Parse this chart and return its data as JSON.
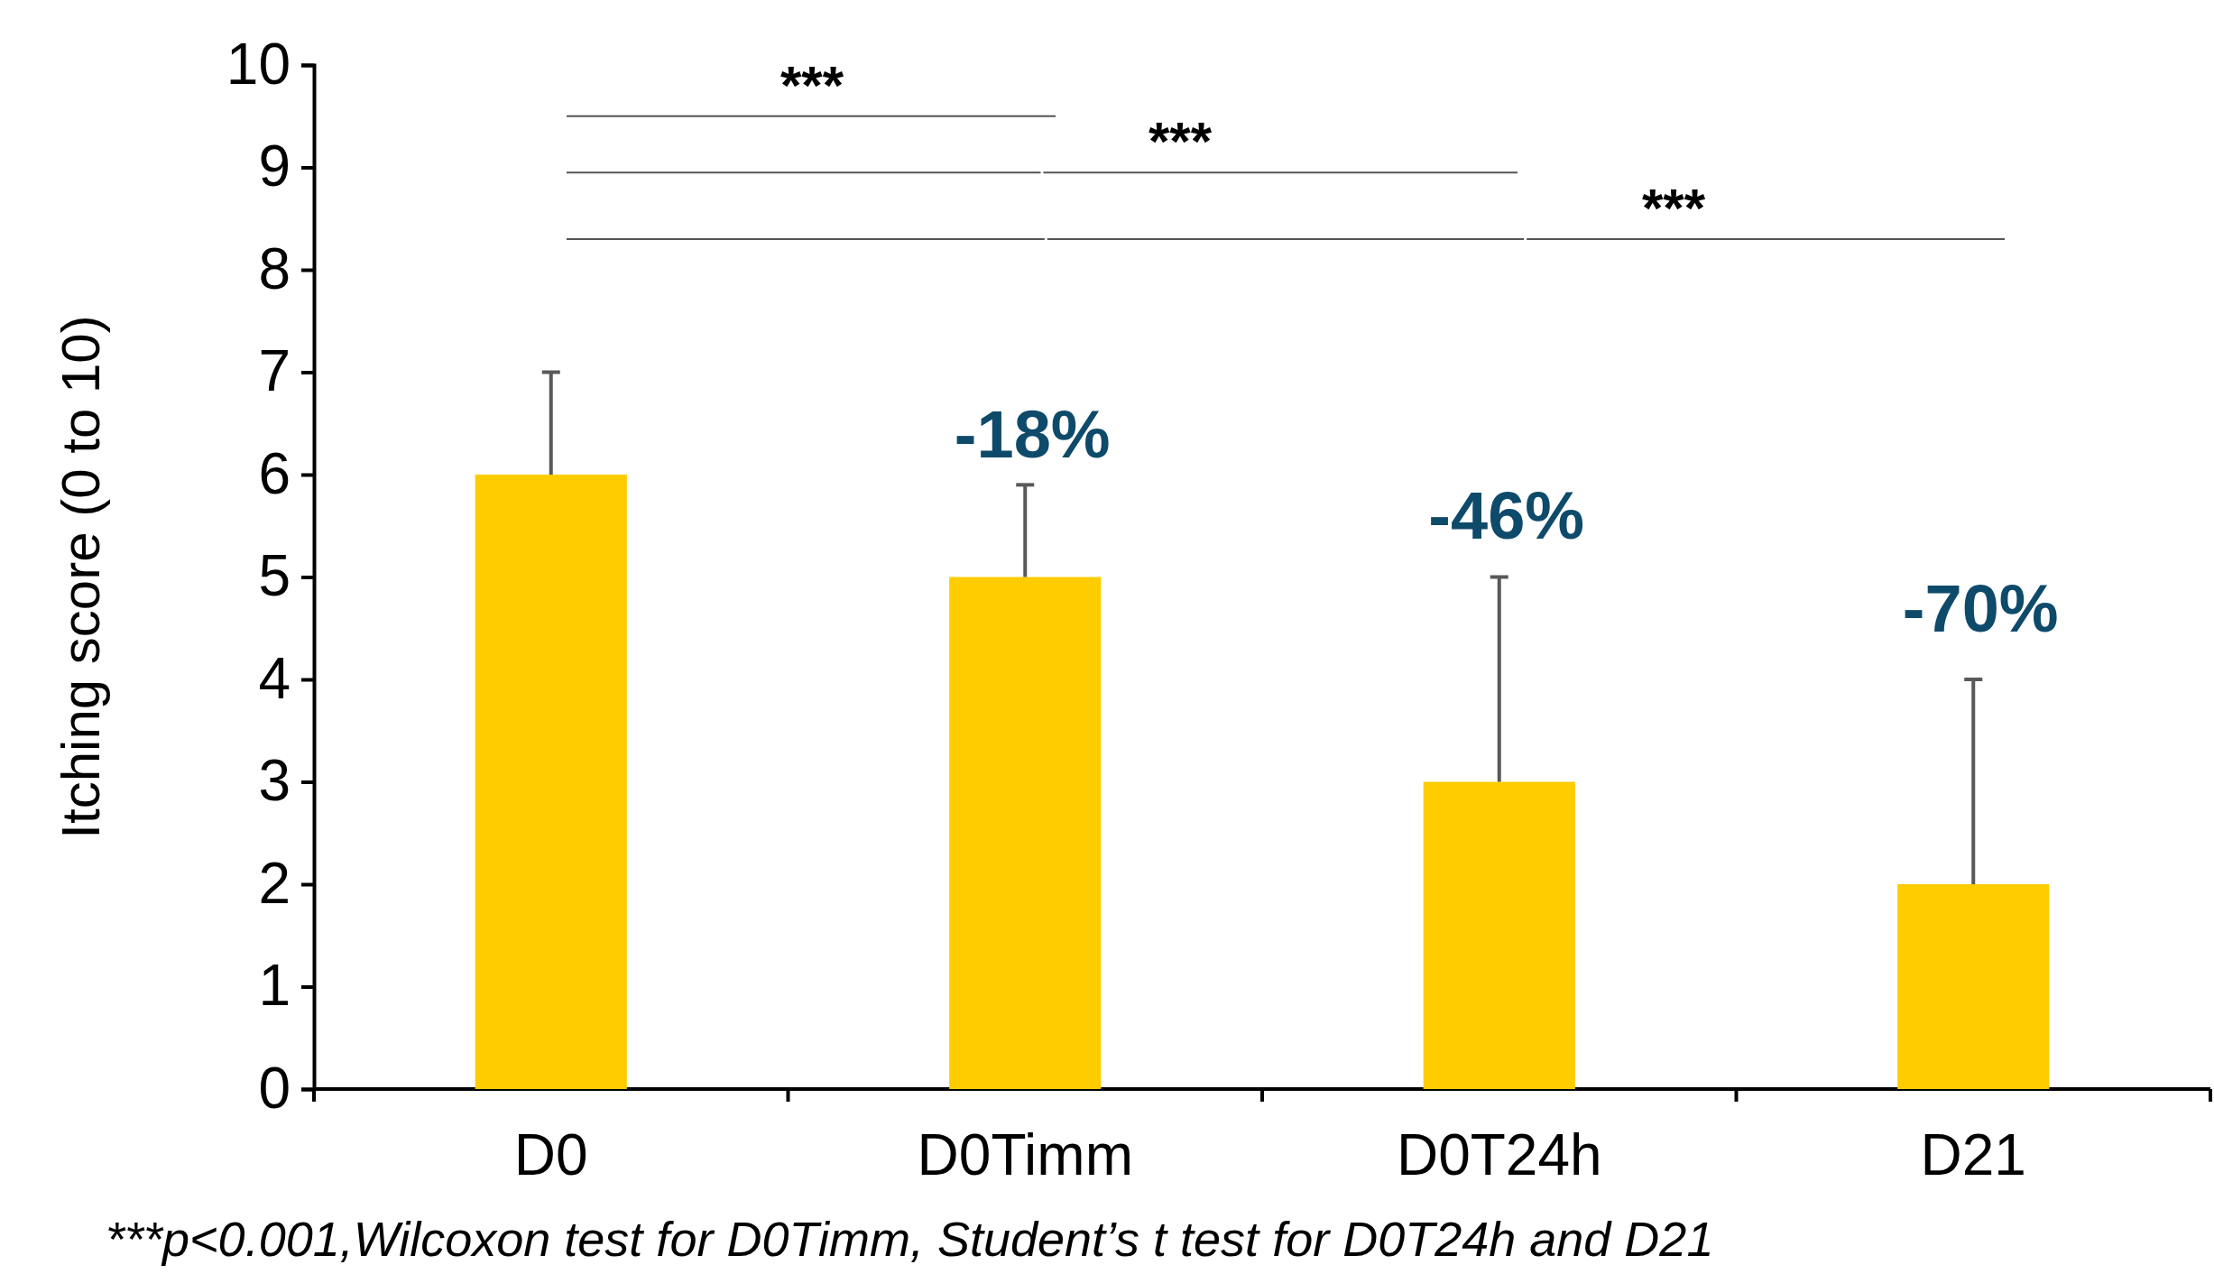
{
  "chart_data": {
    "type": "bar",
    "ylabel": "Itching score (0 to 10)",
    "categories": [
      "D0",
      "D0Timm",
      "D0T24h",
      "D21"
    ],
    "values": [
      6,
      5,
      3,
      2
    ],
    "color": "#ffcc00",
    "errors": [
      [
        6,
        7
      ],
      [
        5,
        5.9
      ],
      [
        3,
        5
      ],
      [
        2,
        4
      ]
    ],
    "ylim": [
      0,
      10
    ],
    "yticks": [
      0,
      1,
      2,
      3,
      4,
      5,
      6,
      7,
      8,
      9,
      10
    ],
    "grid": false,
    "annotations": [
      "***",
      "***",
      "***",
      "-18%",
      "-46%",
      "-70%",
      "***p<0.001,Wilcoxon test for D0Timm, Student’s t test for D0T24h and D21"
    ]
  }
}
